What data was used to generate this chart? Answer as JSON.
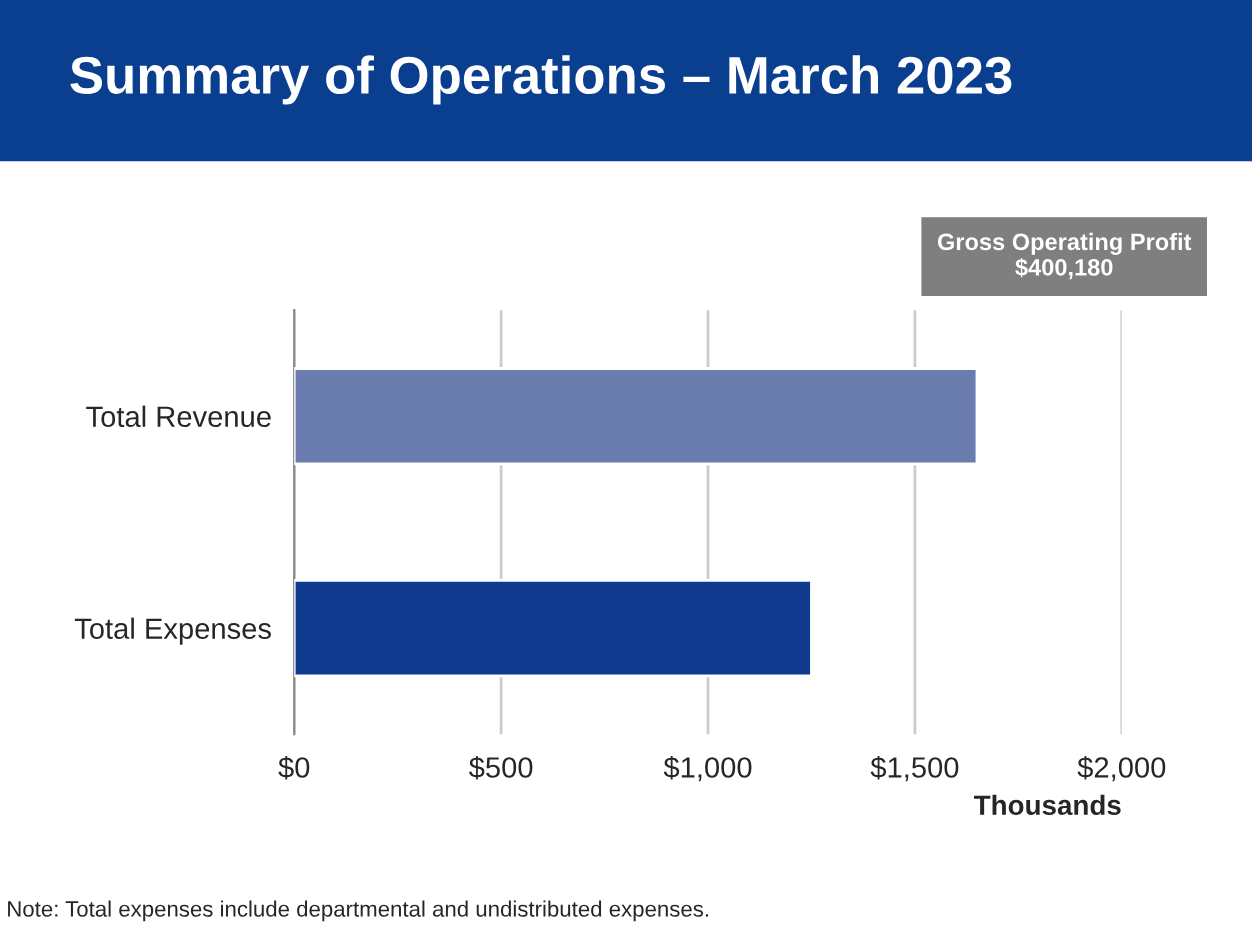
{
  "chart_data": {
    "type": "bar",
    "orientation": "horizontal",
    "title": "Summary of Operations – March 2023",
    "categories": [
      "Total Revenue",
      "Total Expenses"
    ],
    "values": [
      1650,
      1250
    ],
    "colors": [
      "#6b7dae",
      "#0f3a8e"
    ],
    "xlim": [
      0,
      2000
    ],
    "xticks": [
      {
        "value": 0,
        "label": "$0"
      },
      {
        "value": 500,
        "label": "$500"
      },
      {
        "value": 1000,
        "label": "$1,000"
      },
      {
        "value": 1500,
        "label": "$1,500"
      },
      {
        "value": 2000,
        "label": "$2,000"
      }
    ],
    "xlabel": "Thousands",
    "grid": "x",
    "annotations": [
      "Gross Operating Profit\n$400,180",
      "Note: Total expenses include departmental and undistributed expenses."
    ]
  }
}
